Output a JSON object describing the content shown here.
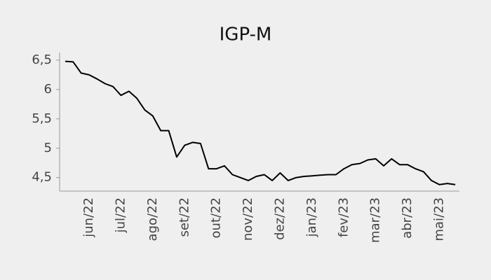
{
  "chart_data": {
    "type": "line",
    "title": "IGP-M",
    "categories": [
      null,
      null,
      null,
      "jun/22",
      null,
      null,
      null,
      "jul/22",
      null,
      null,
      null,
      "ago/22",
      null,
      null,
      null,
      "set/22",
      null,
      null,
      null,
      "out/22",
      null,
      null,
      null,
      "nov/22",
      null,
      null,
      null,
      "dez/22",
      null,
      null,
      null,
      "jan/23",
      null,
      null,
      null,
      "fev/23",
      null,
      null,
      null,
      "mar/23",
      null,
      null,
      null,
      "abr/23",
      null,
      null,
      null,
      "mai/23",
      null,
      null
    ],
    "values": [
      6.48,
      6.47,
      6.28,
      6.25,
      6.18,
      6.1,
      6.05,
      5.9,
      5.97,
      5.85,
      5.65,
      5.55,
      5.3,
      5.3,
      4.85,
      5.05,
      5.1,
      5.08,
      4.65,
      4.65,
      4.7,
      4.55,
      4.5,
      4.45,
      4.52,
      4.55,
      4.45,
      4.58,
      4.45,
      4.5,
      4.52,
      4.53,
      4.54,
      4.55,
      4.55,
      4.65,
      4.72,
      4.74,
      4.8,
      4.82,
      4.7,
      4.82,
      4.72,
      4.72,
      4.65,
      4.6,
      4.45,
      4.38,
      4.4,
      4.38
    ],
    "color": "#000000",
    "ylim": [
      4.27,
      6.63
    ],
    "yticks": [
      {
        "value": 4.5,
        "label": "4,5"
      },
      5,
      {
        "value": 5.5,
        "label": "5,5"
      },
      6,
      {
        "value": 6.5,
        "label": "6,5"
      }
    ]
  }
}
